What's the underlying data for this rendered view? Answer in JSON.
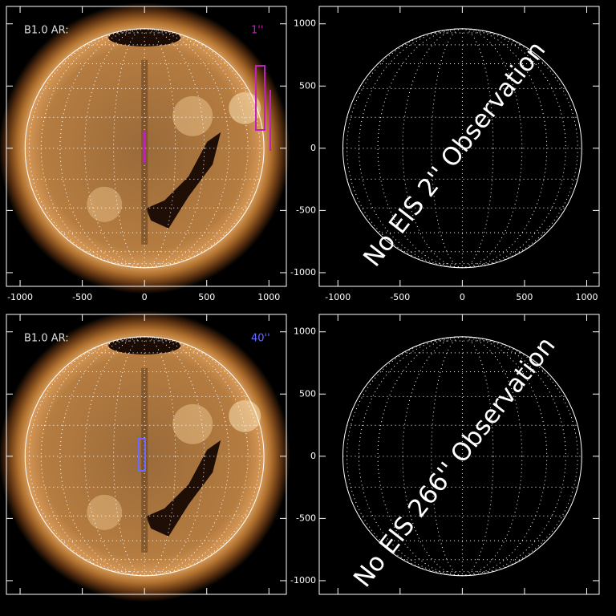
{
  "panels": [
    {
      "label": "B1.0 AR:",
      "slit": "1''",
      "image": true,
      "xlim": [
        -1110,
        1140
      ],
      "ylim": [
        -1110,
        1140
      ],
      "xticks": [
        -1000,
        -500,
        0,
        500,
        1000
      ],
      "yticks": [
        -1000,
        -500,
        0,
        500,
        1000
      ],
      "xlabels": true,
      "ylabels": false
    },
    {
      "note": "No EIS 2'' Observation",
      "image": false,
      "xlim": [
        -1150,
        1100
      ],
      "ylim": [
        -1110,
        1140
      ],
      "xticks": [
        -1000,
        -500,
        0,
        500,
        1000
      ],
      "yticks": [
        -1000,
        -500,
        0,
        500,
        1000
      ],
      "xlabels": true,
      "ylabels": true
    },
    {
      "label": "B1.0 AR:",
      "slit": "40''",
      "image": true,
      "xlim": [
        -1110,
        1140
      ],
      "ylim": [
        -1110,
        1140
      ],
      "xticks": [
        -1000,
        -500,
        0,
        500,
        1000
      ],
      "yticks": [
        -1000,
        -500,
        0,
        500,
        1000
      ],
      "xlabels": false,
      "ylabels": false
    },
    {
      "note": "No EIS 266'' Observation",
      "image": false,
      "xlim": [
        -1150,
        1100
      ],
      "ylim": [
        -1110,
        1140
      ],
      "xticks": [
        -1000,
        -500,
        0,
        500,
        1000
      ],
      "yticks": [
        -1000,
        -500,
        0,
        500,
        1000
      ],
      "xlabels": false,
      "ylabels": true
    }
  ]
}
